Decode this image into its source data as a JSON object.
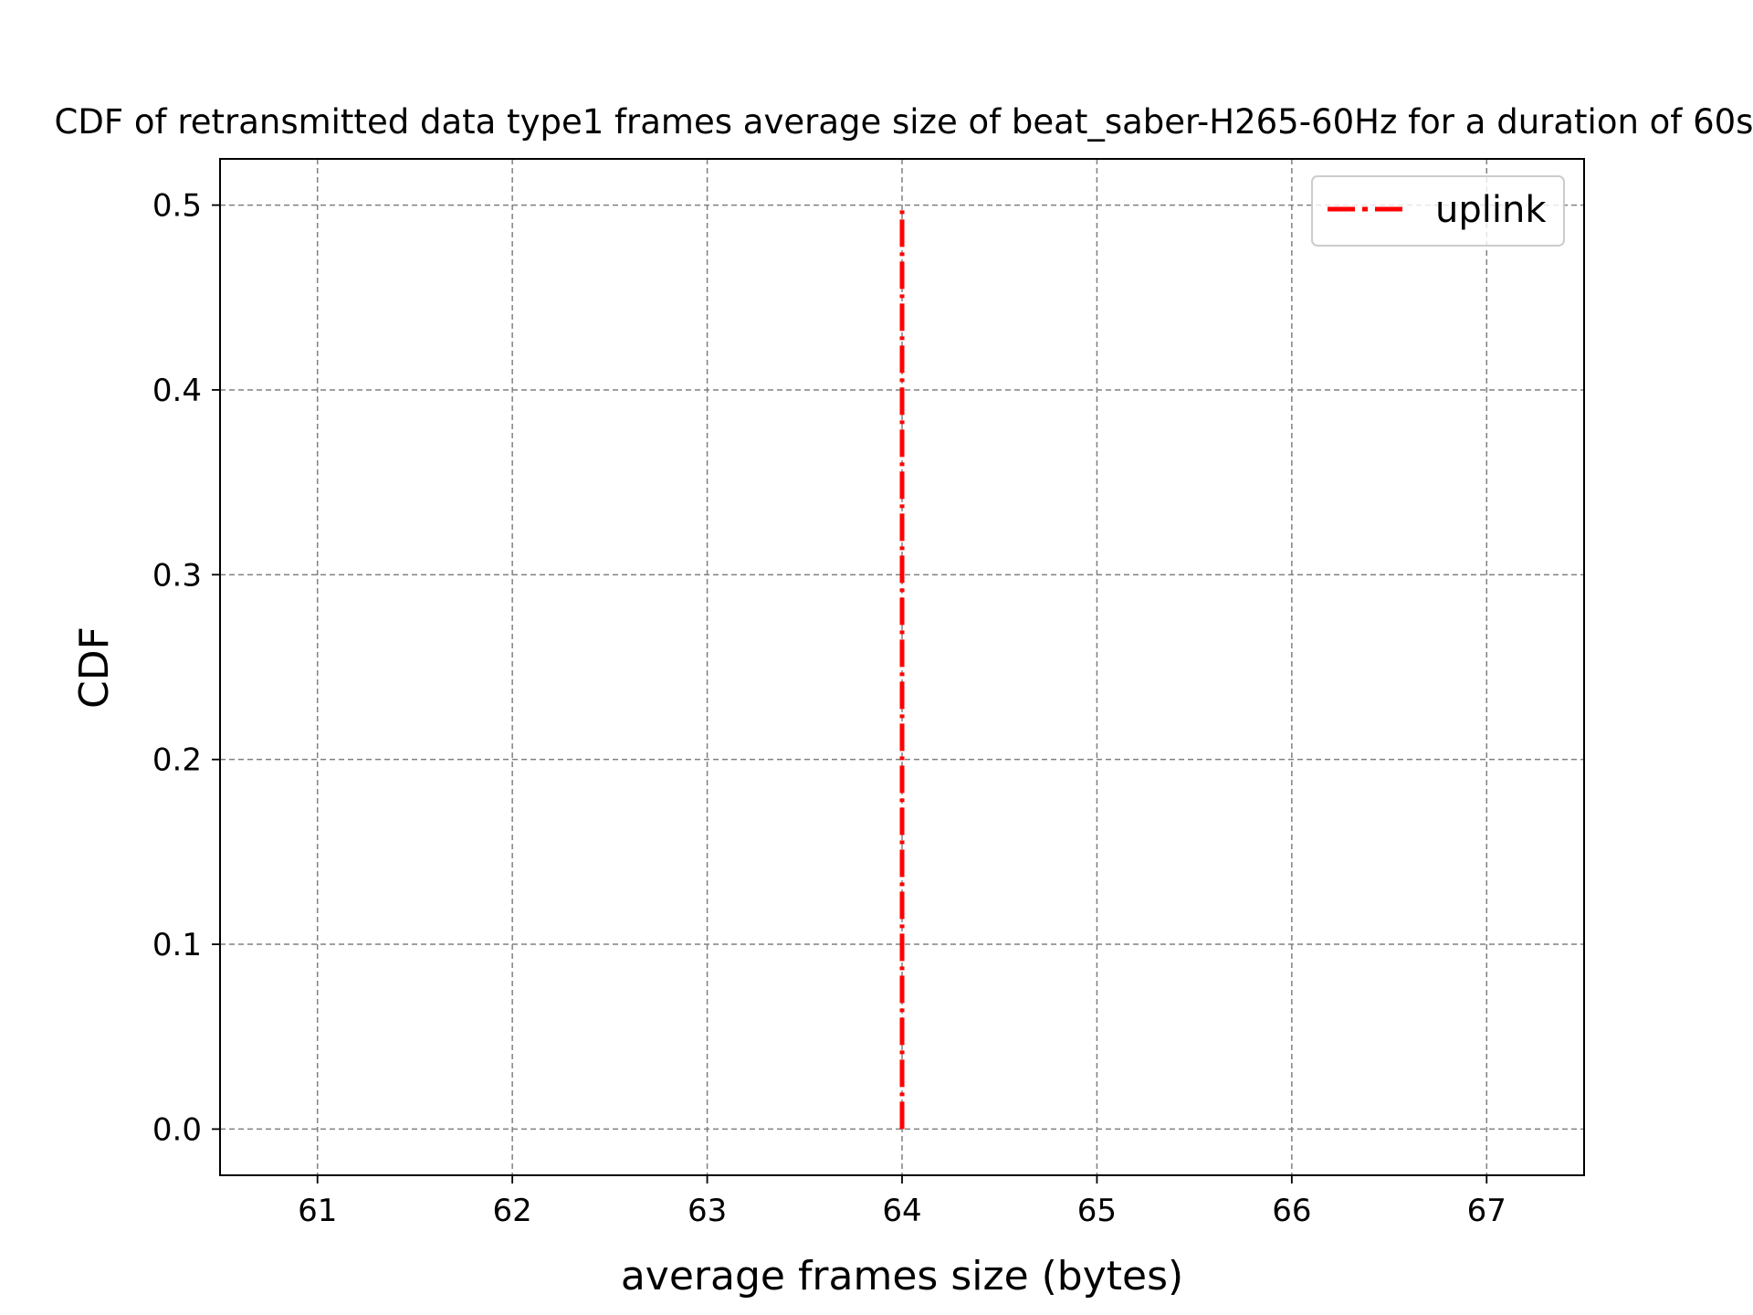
{
  "chart_data": {
    "type": "line",
    "title": "CDF of retransmitted data type1 frames average size of beat_saber-H265-60Hz for a duration of 60s",
    "xlabel": "average frames size (bytes)",
    "ylabel": "CDF",
    "xlim": [
      60.5,
      67.5
    ],
    "ylim": [
      -0.025,
      0.525
    ],
    "xticks": [
      61,
      62,
      63,
      64,
      65,
      66,
      67
    ],
    "yticks": [
      0.0,
      0.1,
      0.2,
      0.3,
      0.4,
      0.5
    ],
    "xtick_labels": [
      "61",
      "62",
      "63",
      "64",
      "65",
      "66",
      "67"
    ],
    "ytick_labels": [
      "0.0",
      "0.1",
      "0.2",
      "0.3",
      "0.4",
      "0.5"
    ],
    "grid": true,
    "legend": {
      "position": "top-right"
    },
    "series": [
      {
        "name": "uplink",
        "color": "#ff0000",
        "line_style": "dash-dot",
        "x": [
          64,
          64
        ],
        "y": [
          0.0,
          0.5
        ]
      }
    ]
  }
}
